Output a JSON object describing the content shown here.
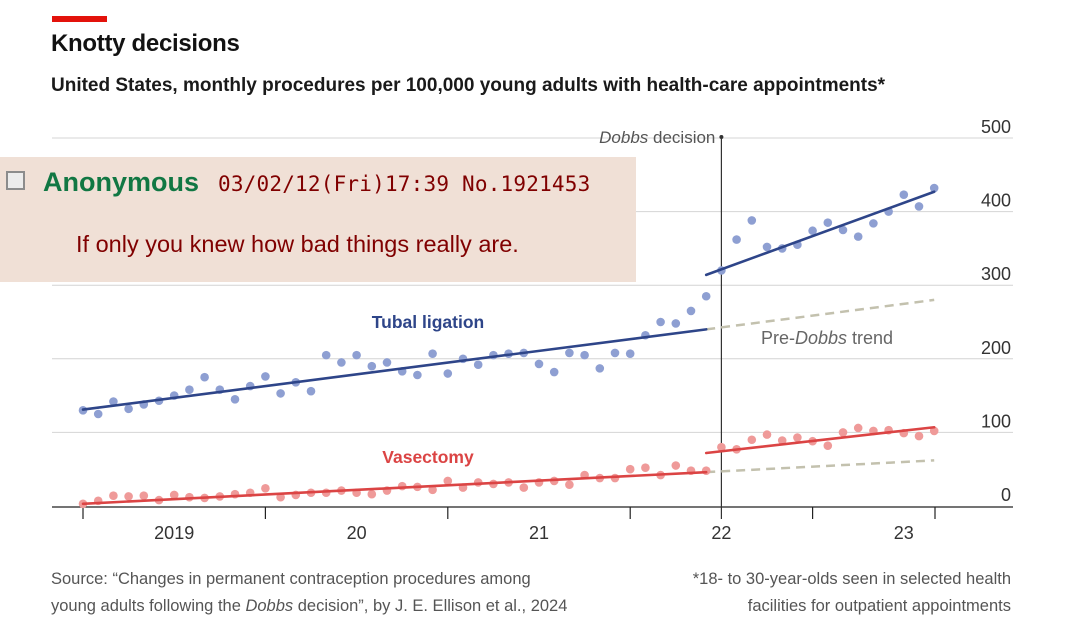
{
  "header": {
    "title": "Knotty decisions",
    "subtitle": "United States, monthly procedures per 100,000 young adults with health-care appointments*"
  },
  "footer": {
    "source_line1": "Source: “Changes in permanent contraception procedures among",
    "source_line2_pre": "young adults following the ",
    "source_line2_em": "Dobbs",
    "source_line2_post": " decision”, by J. E. Ellison et al., 2024",
    "note_line1": "*18- to 30-year-olds seen in selected health",
    "note_line2": "facilities for outpatient appointments"
  },
  "post": {
    "name": "Anonymous",
    "meta": "03/02/12(Fri)17:39 No.1921453",
    "text": "If only you knew how bad things really are."
  },
  "colors": {
    "accent": "#e3120b",
    "tubal_points": "#8e9fd2",
    "tubal_line": "#2e4589",
    "vasectomy_points": "#ef9a99",
    "vasectomy_line": "#db4444",
    "trend": "#c3c1ae",
    "post_background": "#f0e0d6",
    "post_name": "#117743",
    "post_text": "#800000"
  },
  "chart_data": {
    "type": "scatter",
    "ylim": [
      0,
      500
    ],
    "yticks": [
      0,
      100,
      200,
      300,
      400,
      500
    ],
    "grid": true,
    "x_unit": "month",
    "xlim": [
      "2019-01",
      "2023-08"
    ],
    "xtick_labels": [
      {
        "label": "2019",
        "pos": "2019-07"
      },
      {
        "label": "20",
        "pos": "2020-07"
      },
      {
        "label": "21",
        "pos": "2021-07"
      },
      {
        "label": "22",
        "pos": "2022-07"
      },
      {
        "label": "23",
        "pos": "2023-07"
      }
    ],
    "year_boundaries": [
      "2019-01",
      "2020-01",
      "2021-01",
      "2022-01",
      "2023-01"
    ],
    "event": {
      "label_em": "Dobbs",
      "label_rest": " decision",
      "x": "2022-07"
    },
    "start_month": "2019-01",
    "series": [
      {
        "name": "Tubal ligation",
        "values": [
          130,
          125,
          142,
          132,
          138,
          143,
          150,
          158,
          175,
          158,
          145,
          163,
          176,
          153,
          168,
          156,
          205,
          195,
          205,
          190,
          195,
          183,
          178,
          207,
          180,
          200,
          192,
          205,
          207,
          208,
          193,
          182,
          208,
          205,
          187,
          208,
          207,
          232,
          250,
          248,
          265,
          285,
          320,
          362,
          388,
          352,
          350,
          355,
          374,
          385,
          375,
          366,
          384,
          400,
          423,
          407,
          432
        ],
        "fit_pre": [
          [
            0,
            131
          ],
          [
            41,
            240
          ]
        ],
        "fit_post": [
          [
            41,
            314
          ],
          [
            56,
            427
          ]
        ],
        "trend_projection": [
          [
            41,
            240
          ],
          [
            56,
            280
          ]
        ]
      },
      {
        "name": "Vasectomy",
        "values": [
          3,
          7,
          14,
          13,
          14,
          8,
          15,
          12,
          11,
          13,
          16,
          18,
          24,
          12,
          15,
          18,
          18,
          21,
          18,
          16,
          21,
          27,
          26,
          22,
          34,
          25,
          32,
          30,
          32,
          25,
          32,
          34,
          29,
          42,
          38,
          38,
          50,
          52,
          42,
          55,
          48,
          48,
          80,
          77,
          90,
          97,
          89,
          93,
          88,
          82,
          100,
          106,
          102,
          103,
          99,
          95,
          102
        ],
        "fit_pre": [
          [
            0,
            3
          ],
          [
            41,
            46
          ]
        ],
        "fit_post": [
          [
            41,
            72
          ],
          [
            56,
            107
          ]
        ],
        "trend_projection": [
          [
            41,
            46
          ],
          [
            56,
            62
          ]
        ]
      }
    ],
    "annotations": [
      {
        "text": "Tubal ligation",
        "series": "Tubal ligation"
      },
      {
        "text": "Vasectomy",
        "series": "Vasectomy"
      },
      {
        "text_pre": "Pre-",
        "text_em": "Dobbs",
        "text_post": " trend",
        "series": "trend"
      }
    ]
  }
}
